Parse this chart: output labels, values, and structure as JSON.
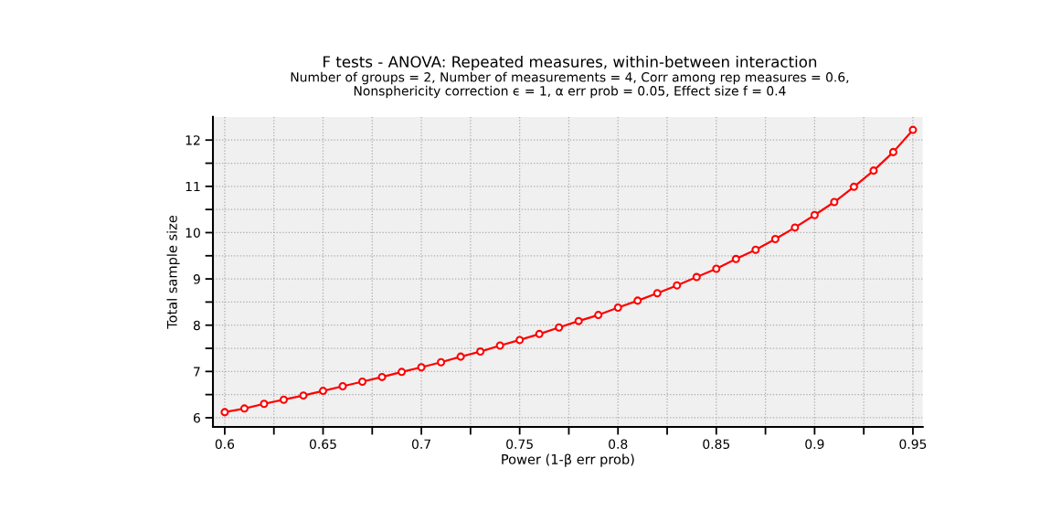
{
  "chart_data": {
    "type": "line",
    "title": "F tests - ANOVA: Repeated measures, within-between interaction",
    "subtitle": "Number of groups = 2, Number of measurements = 4, Corr among rep measures = 0.6,\nNonsphericity correction ϵ = 1, α err prob = 0.05, Effect size f = 0.4",
    "xlabel": "Power (1-β err prob)",
    "ylabel": "Total sample size",
    "x": [
      0.6,
      0.61,
      0.62,
      0.63,
      0.64,
      0.65,
      0.66,
      0.67,
      0.68,
      0.69,
      0.7,
      0.71,
      0.72,
      0.73,
      0.74,
      0.75,
      0.76,
      0.77,
      0.78,
      0.79,
      0.8,
      0.81,
      0.82,
      0.83,
      0.84,
      0.85,
      0.86,
      0.87,
      0.88,
      0.89,
      0.9,
      0.91,
      0.92,
      0.93,
      0.94,
      0.95
    ],
    "series": [
      {
        "color": "#ff0000",
        "values": [
          6.12,
          6.2,
          6.3,
          6.39,
          6.48,
          6.58,
          6.68,
          6.78,
          6.88,
          6.99,
          7.09,
          7.2,
          7.32,
          7.43,
          7.56,
          7.68,
          7.81,
          7.95,
          8.09,
          8.22,
          8.38,
          8.53,
          8.69,
          8.86,
          9.04,
          9.22,
          9.43,
          9.63,
          9.86,
          10.11,
          10.38,
          10.66,
          10.99,
          11.34,
          11.74,
          12.22
        ]
      }
    ],
    "xlim": [
      0.594,
      0.955
    ],
    "ylim": [
      5.8,
      12.5
    ],
    "xticks": [
      0.6,
      {
        "value": 0.625,
        "label": null
      },
      0.65,
      {
        "value": 0.675,
        "label": null
      },
      0.7,
      {
        "value": 0.725,
        "label": null
      },
      0.75,
      {
        "value": 0.775,
        "label": null
      },
      0.8,
      {
        "value": 0.825,
        "label": null
      },
      0.85,
      {
        "value": 0.875,
        "label": null
      },
      0.9,
      {
        "value": 0.925,
        "label": null
      },
      0.95
    ],
    "yticks": [
      6,
      {
        "value": 6.5,
        "label": null
      },
      7,
      {
        "value": 7.5,
        "label": null
      },
      8,
      {
        "value": 8.5,
        "label": null
      },
      9,
      {
        "value": 9.5,
        "label": null
      },
      10,
      {
        "value": 10.5,
        "label": null
      },
      11,
      {
        "value": 11.5,
        "label": null
      },
      12
    ],
    "grid": true,
    "marker": "circle",
    "line_style": "solid"
  }
}
